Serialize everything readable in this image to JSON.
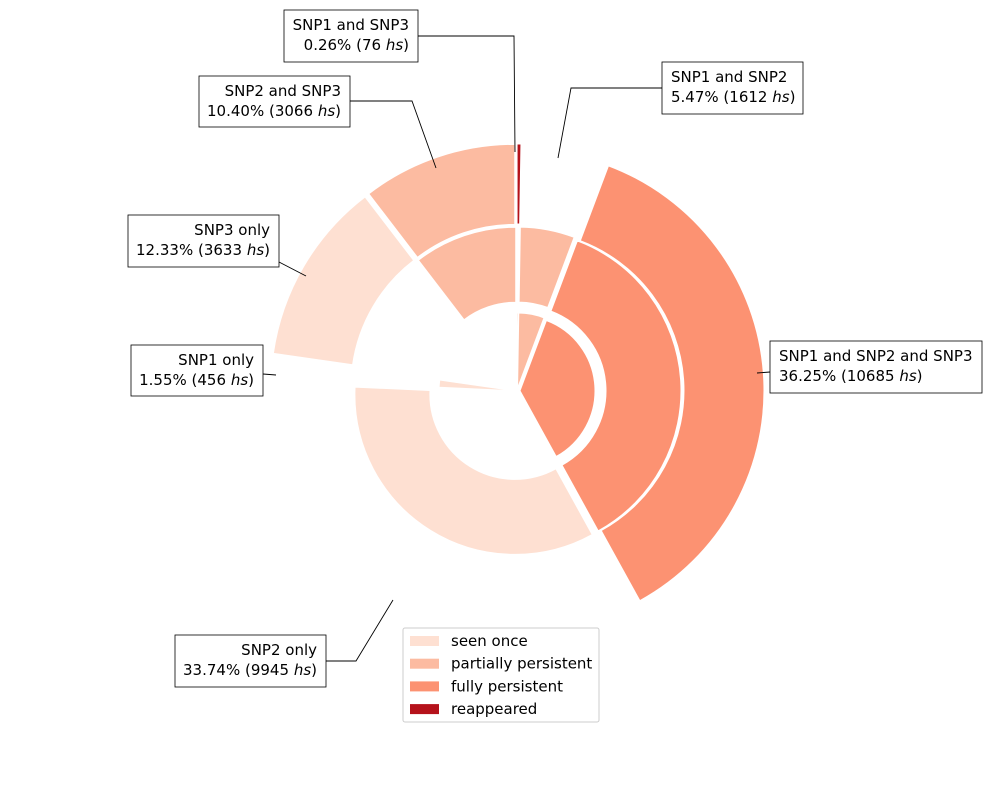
{
  "chart_data": {
    "type": "sunburst",
    "unit": "hs",
    "segments": [
      {
        "key": "snp1_only",
        "label": "SNP1 only",
        "pct": "1.55%",
        "count": "456",
        "value": 456
      },
      {
        "key": "snp2_only",
        "label": "SNP2 only",
        "pct": "33.74%",
        "count": "9945",
        "value": 9945
      },
      {
        "key": "snp3_only",
        "label": "SNP3 only",
        "pct": "12.33%",
        "count": "3633",
        "value": 3633
      },
      {
        "key": "snp1_snp2",
        "label": "SNP1 and SNP2",
        "pct": "5.47%",
        "count": "1612",
        "value": 1612
      },
      {
        "key": "snp1_snp3",
        "label": "SNP1 and SNP3",
        "pct": "0.26%",
        "count": "76",
        "value": 76
      },
      {
        "key": "snp2_snp3",
        "label": "SNP2 and SNP3",
        "pct": "10.40%",
        "count": "3066",
        "value": 3066
      },
      {
        "key": "snp1_snp2_snp3",
        "label": "SNP1 and SNP2 and SNP3",
        "pct": "36.25%",
        "count": "10685",
        "value": 10685
      }
    ],
    "legend": [
      {
        "key": "seen_once",
        "label": "seen once",
        "color": "#fee0d2"
      },
      {
        "key": "partially_persistent",
        "label": "partially persistent",
        "color": "#fcbba1"
      },
      {
        "key": "fully_persistent",
        "label": "fully persistent",
        "color": "#fc9272"
      },
      {
        "key": "reappeared",
        "label": "reappeared",
        "color": "#b5121b"
      }
    ]
  }
}
